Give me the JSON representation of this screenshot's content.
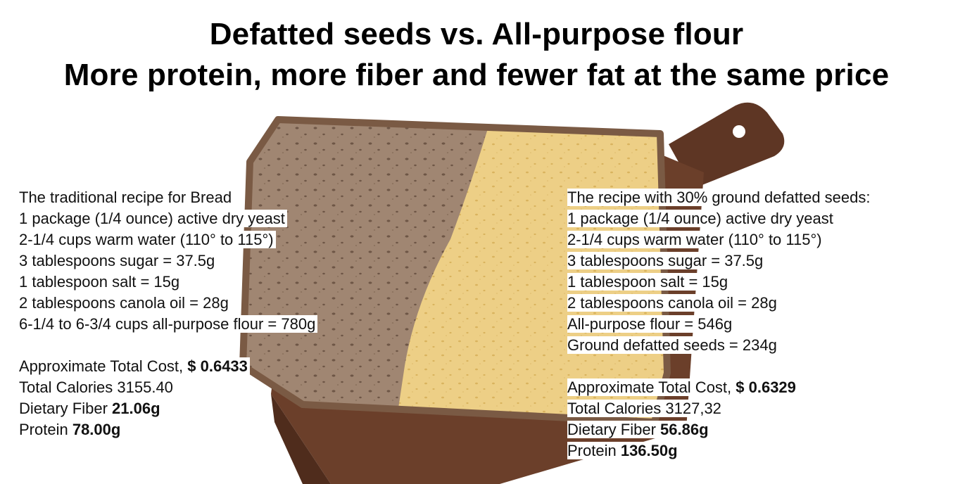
{
  "title": {
    "line1": "Defatted seeds vs. All-purpose flour",
    "line2": "More protein, more fiber and fewer fat at the same price"
  },
  "left": {
    "heading": "The traditional recipe for Bread",
    "ingredients": [
      "1 package (1/4 ounce) active dry yeast",
      "2-1/4 cups warm water (110° to 115°)",
      "3 tablespoons sugar = 37.5g",
      "1 tablespoon salt = 15g",
      "2 tablespoons canola oil = 28g",
      "6-1/4 to 6-3/4 cups all-purpose flour = 780g"
    ],
    "cost_label": "Approximate Total Cost, ",
    "cost_value": "$ 0.6433",
    "calories": "Total Calories 3155.40",
    "fiber_label": "Dietary Fiber ",
    "fiber_value": "21.06g",
    "protein_label": "Protein ",
    "protein_value": "78.00g"
  },
  "right": {
    "heading": "The recipe with 30% ground defatted seeds:",
    "ingredients": [
      "1 package (1/4 ounce) active dry yeast",
      "2-1/4 cups warm water (110° to 115°)",
      "3 tablespoons sugar = 37.5g",
      "1 tablespoon salt = 15g",
      "2 tablespoons canola oil = 28g",
      "All-purpose flour = 546g",
      "Ground defatted seeds = 234g"
    ],
    "cost_label": "Approximate Total Cost, ",
    "cost_value": "$ 0.6329",
    "calories": "Total Calories 3127,32",
    "fiber_label": "Dietary Fiber ",
    "fiber_value": "56.86g",
    "protein_label": "Protein ",
    "protein_value": "136.50g"
  },
  "colors": {
    "board": "#6b3f2a",
    "crust": "#7a5a44",
    "dark_crumb": "#a08672",
    "light_crumb": "#edcf86"
  }
}
